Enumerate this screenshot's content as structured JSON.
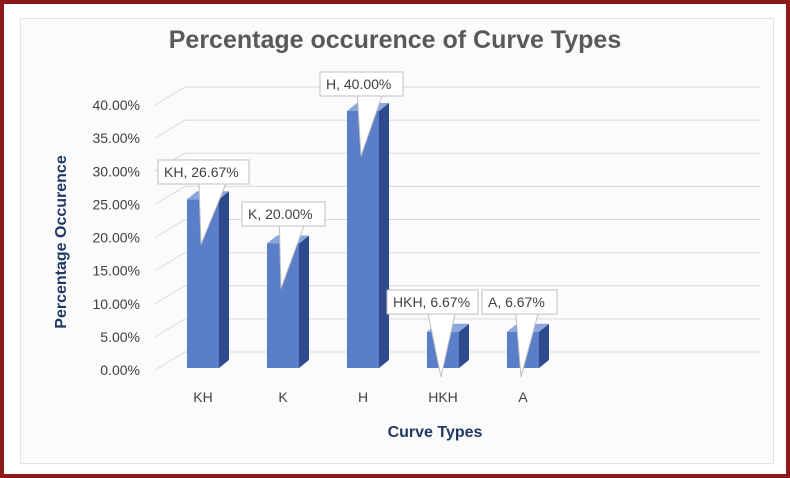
{
  "chart_data": {
    "type": "bar",
    "title": "Percentage occurence of Curve Types",
    "xlabel": "Curve Types",
    "ylabel": "Percentage Occurence",
    "categories": [
      "KH",
      "K",
      "H",
      "HKH",
      "A"
    ],
    "values": [
      26.67,
      20.0,
      40.0,
      6.67,
      6.67
    ],
    "data_labels": [
      "KH, 26.67%",
      "K, 20.00%",
      "H, 40.00%",
      "HKH, 6.67%",
      "A, 6.67%"
    ],
    "yticks": [
      "0.00%",
      "5.00%",
      "10.00%",
      "15.00%",
      "20.00%",
      "25.00%",
      "30.00%",
      "35.00%",
      "40.00%"
    ],
    "ylim": [
      0,
      40
    ],
    "grid": true,
    "style": "3d-column",
    "colors": {
      "bar_front": "#5b7ec9",
      "bar_side": "#2f4a8c",
      "bar_top": "#8aa6dd",
      "frame": "#8b1a1a",
      "axis_title": "#1f3864"
    }
  }
}
